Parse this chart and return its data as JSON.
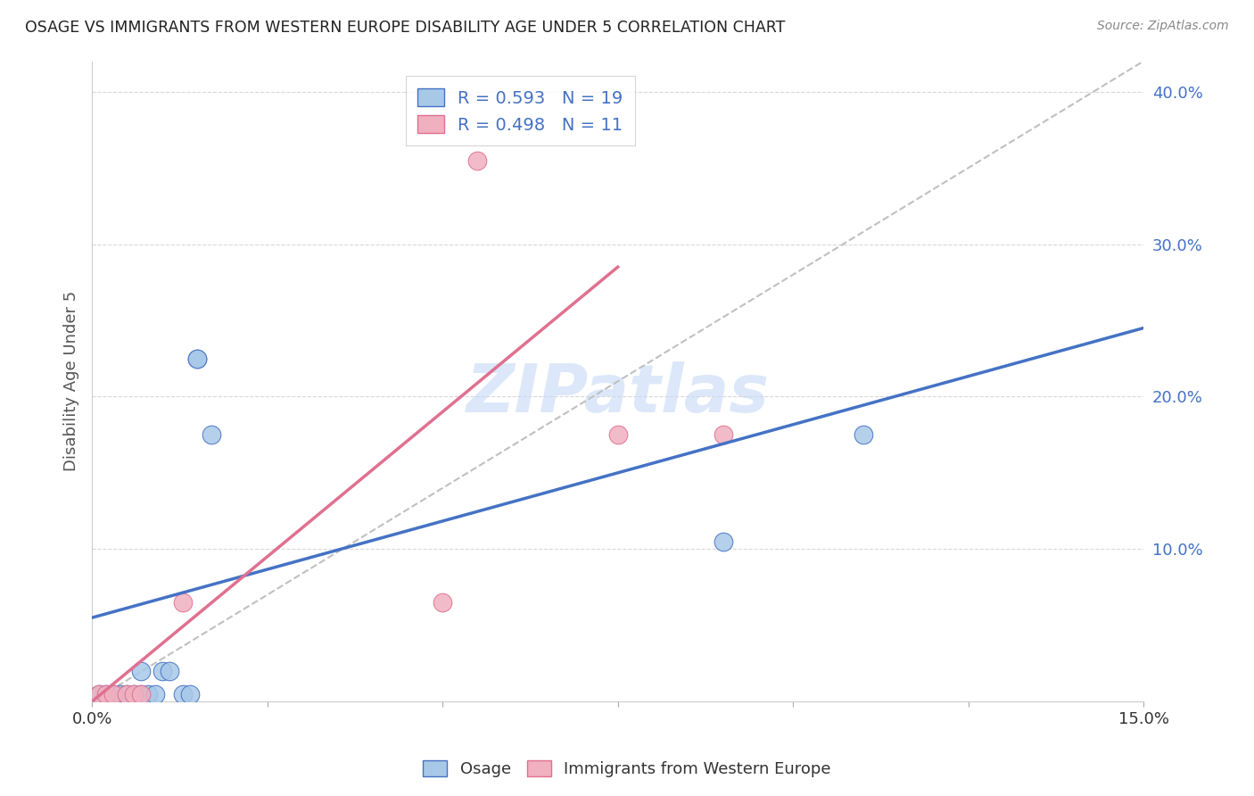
{
  "title": "OSAGE VS IMMIGRANTS FROM WESTERN EUROPE DISABILITY AGE UNDER 5 CORRELATION CHART",
  "source": "Source: ZipAtlas.com",
  "ylabel_label": "Disability Age Under 5",
  "xlim": [
    0.0,
    0.15
  ],
  "ylim": [
    0.0,
    0.42
  ],
  "xticks": [
    0.0,
    0.025,
    0.05,
    0.075,
    0.1,
    0.125,
    0.15
  ],
  "xtick_labels": [
    "0.0%",
    "",
    "",
    "",
    "",
    "",
    "15.0%"
  ],
  "ytick_positions": [
    0.0,
    0.1,
    0.2,
    0.3,
    0.4
  ],
  "ytick_labels": [
    "",
    "10.0%",
    "20.0%",
    "30.0%",
    "40.0%"
  ],
  "osage_color": "#a8c8e8",
  "immigrants_color": "#f0b0c0",
  "osage_line_color": "#4472c4",
  "immigrants_line_color": "#e07090",
  "diagonal_color": "#c0c0c0",
  "legend_R_osage": "0.593",
  "legend_N_osage": "19",
  "legend_R_immigrants": "0.498",
  "legend_N_immigrants": "11",
  "osage_x": [
    0.001,
    0.002,
    0.003,
    0.004,
    0.005,
    0.006,
    0.007,
    0.007,
    0.008,
    0.009,
    0.01,
    0.011,
    0.013,
    0.014,
    0.015,
    0.015,
    0.017,
    0.09,
    0.11
  ],
  "osage_y": [
    0.005,
    0.005,
    0.005,
    0.005,
    0.005,
    0.005,
    0.005,
    0.02,
    0.005,
    0.005,
    0.02,
    0.02,
    0.005,
    0.005,
    0.225,
    0.225,
    0.175,
    0.105,
    0.175
  ],
  "immigrants_x": [
    0.001,
    0.002,
    0.003,
    0.005,
    0.006,
    0.007,
    0.013,
    0.05,
    0.055,
    0.075,
    0.09
  ],
  "immigrants_y": [
    0.005,
    0.005,
    0.005,
    0.005,
    0.005,
    0.005,
    0.065,
    0.065,
    0.355,
    0.175,
    0.175
  ],
  "blue_line_x0": 0.0,
  "blue_line_y0": 0.055,
  "blue_line_x1": 0.15,
  "blue_line_y1": 0.245,
  "pink_line_x0": 0.0,
  "pink_line_y0": 0.0,
  "pink_line_x1": 0.075,
  "pink_line_y1": 0.285,
  "watermark": "ZIPatlas",
  "background_color": "#ffffff",
  "grid_color": "#d8d8d8"
}
